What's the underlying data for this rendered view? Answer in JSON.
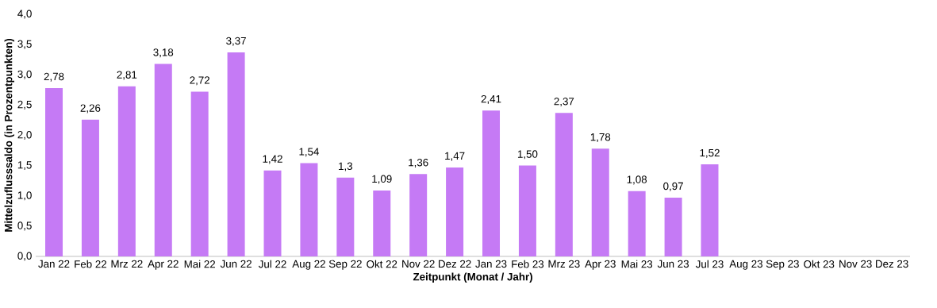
{
  "chart_data": {
    "type": "bar",
    "xlabel": "Zeitpunkt (Monat / Jahr)",
    "ylabel": "Mittelzuflusssaldo (in Prozentpunkten)",
    "categories": [
      "Jan 22",
      "Feb 22",
      "Mrz 22",
      "Apr 22",
      "Mai 22",
      "Jun 22",
      "Jul 22",
      "Aug 22",
      "Sep 22",
      "Okt 22",
      "Nov 22",
      "Dez 22",
      "Jan 23",
      "Feb 23",
      "Mrz 23",
      "Apr 23",
      "Mai 23",
      "Jun 23",
      "Jul 23",
      "Aug 23",
      "Sep 23",
      "Okt 23",
      "Nov 23",
      "Dez 23"
    ],
    "values": [
      2.78,
      2.26,
      2.81,
      3.18,
      2.72,
      3.37,
      1.42,
      1.54,
      1.3,
      1.09,
      1.36,
      1.47,
      2.41,
      1.5,
      2.37,
      1.78,
      1.08,
      0.97,
      1.52,
      null,
      null,
      null,
      null,
      null
    ],
    "value_labels": [
      "2,78",
      "2,26",
      "2,81",
      "3,18",
      "2,72",
      "3,37",
      "1,42",
      "1,54",
      "1,3",
      "1,09",
      "1,36",
      "1,47",
      "2,41",
      "1,50",
      "2,37",
      "1,78",
      "1,08",
      "0,97",
      "1,52",
      null,
      null,
      null,
      null,
      null
    ],
    "color": "#c57af5",
    "ylim": [
      0,
      4
    ],
    "yticks": [
      {
        "value": 0,
        "label": "0,0"
      },
      {
        "value": 0.5,
        "label": "0,5"
      },
      {
        "value": 1,
        "label": "1,0"
      },
      {
        "value": 1.5,
        "label": "1,5"
      },
      {
        "value": 2,
        "label": "2,0"
      },
      {
        "value": 2.5,
        "label": "2,5"
      },
      {
        "value": 3,
        "label": "3,0"
      },
      {
        "value": 3.5,
        "label": "3,5"
      },
      {
        "value": 4,
        "label": "4,0"
      }
    ]
  }
}
